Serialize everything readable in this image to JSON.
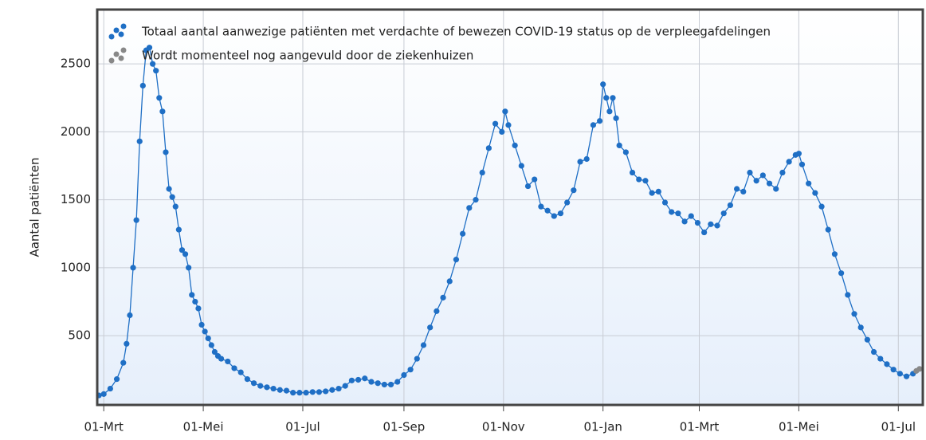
{
  "chart_data": {
    "type": "line",
    "y_label": "Aantal patiënten",
    "xlim": [
      -4,
      502
    ],
    "ylim": [
      -10,
      2900
    ],
    "xticks": [
      {
        "value": 0,
        "label": "01-Mrt"
      },
      {
        "value": 61,
        "label": "01-Mei"
      },
      {
        "value": 122,
        "label": "01-Jul"
      },
      {
        "value": 184,
        "label": "01-Sep"
      },
      {
        "value": 245,
        "label": "01-Nov"
      },
      {
        "value": 306,
        "label": "01-Jan"
      },
      {
        "value": 365,
        "label": "01-Mrt"
      },
      {
        "value": 426,
        "label": "01-Mei"
      },
      {
        "value": 487,
        "label": "01-Jul"
      }
    ],
    "yticks": [
      500,
      1000,
      1500,
      2000,
      2500
    ],
    "grid": true,
    "legend": "top-left",
    "series": [
      {
        "name": "Totaal aantal aanwezige patiënten met verdachte of bewezen COVID-19 status op de verpleegafdelingen",
        "color": "#1f6fc5",
        "x": [
          -3,
          0,
          4,
          8,
          12,
          14,
          16,
          18,
          20,
          22,
          24,
          26,
          28,
          30,
          32,
          34,
          36,
          38,
          40,
          42,
          44,
          46,
          48,
          50,
          52,
          54,
          56,
          58,
          60,
          62,
          64,
          66,
          68,
          70,
          72,
          76,
          80,
          84,
          88,
          92,
          96,
          100,
          104,
          108,
          112,
          116,
          120,
          124,
          128,
          132,
          136,
          140,
          144,
          148,
          152,
          156,
          160,
          164,
          168,
          172,
          176,
          180,
          184,
          188,
          192,
          196,
          200,
          204,
          208,
          212,
          216,
          220,
          224,
          228,
          232,
          236,
          240,
          244,
          246,
          248,
          252,
          256,
          260,
          264,
          268,
          272,
          276,
          280,
          284,
          288,
          292,
          296,
          300,
          304,
          306,
          308,
          310,
          312,
          314,
          316,
          320,
          324,
          328,
          332,
          336,
          340,
          344,
          348,
          352,
          356,
          360,
          364,
          368,
          372,
          376,
          380,
          384,
          388,
          392,
          396,
          400,
          404,
          408,
          412,
          416,
          420,
          424,
          426,
          428,
          432,
          436,
          440,
          444,
          448,
          452,
          456,
          460,
          464,
          468,
          472,
          476,
          480,
          484,
          488,
          492,
          496
        ],
        "values": [
          60,
          70,
          110,
          180,
          300,
          440,
          650,
          1000,
          1350,
          1930,
          2340,
          2600,
          2620,
          2500,
          2450,
          2250,
          2150,
          1850,
          1580,
          1520,
          1450,
          1280,
          1130,
          1100,
          1000,
          800,
          750,
          700,
          580,
          530,
          480,
          430,
          380,
          350,
          330,
          310,
          260,
          230,
          180,
          150,
          130,
          120,
          110,
          100,
          95,
          80,
          80,
          80,
          85,
          85,
          90,
          100,
          110,
          130,
          170,
          175,
          185,
          160,
          150,
          140,
          140,
          160,
          210,
          250,
          330,
          430,
          560,
          680,
          780,
          900,
          1060,
          1250,
          1440,
          1500,
          1700,
          1880,
          2060,
          2000,
          2150,
          2050,
          1900,
          1750,
          1600,
          1650,
          1450,
          1420,
          1380,
          1400,
          1480,
          1570,
          1780,
          1800,
          2050,
          2080,
          2350,
          2250,
          2150,
          2250,
          2100,
          1900,
          1850,
          1700,
          1650,
          1640,
          1550,
          1560,
          1480,
          1410,
          1400,
          1340,
          1380,
          1330,
          1260,
          1320,
          1310,
          1400,
          1460,
          1580,
          1560,
          1700,
          1640,
          1680,
          1620,
          1580,
          1700,
          1780,
          1830,
          1840,
          1760,
          1620,
          1550,
          1450,
          1280,
          1100,
          960,
          800,
          660,
          560,
          470,
          380,
          330,
          290,
          250,
          220,
          200,
          220
        ]
      },
      {
        "name": "Wordt momenteel nog aangevuld door de ziekenhuizen",
        "color": "#888888",
        "x": [
          498,
          500
        ],
        "values": [
          240,
          255
        ]
      }
    ]
  }
}
